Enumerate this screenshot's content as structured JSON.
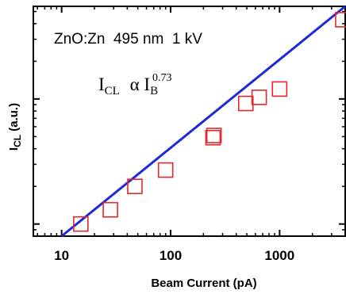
{
  "chart_data": {
    "type": "scatter",
    "title": "",
    "annotation": "ZnO:Zn  495 nm  1 kV",
    "formula": {
      "lhs": "I",
      "lhs_sub": "CL",
      "op": "α",
      "rhs": "I",
      "rhs_sub": "B",
      "rhs_sup": "0.73"
    },
    "xlabel": "Beam Current (pA)",
    "ylabel": "I",
    "ylabel_sub": "CL",
    "ylabel_suffix": " (a.u.)",
    "x_scale": "log",
    "y_scale": "log",
    "xlim": [
      5.5,
      4000
    ],
    "ylim": [
      0.8,
      55
    ],
    "x_ticks": [
      10,
      100,
      1000
    ],
    "x_tick_labels": [
      "10",
      "100",
      "1000"
    ],
    "y_tick_labels_shown": false,
    "grid": false,
    "series": [
      {
        "marker": "open-square",
        "color": "#e8262b",
        "points": [
          {
            "x": 15,
            "y": 1.0
          },
          {
            "x": 28,
            "y": 1.3
          },
          {
            "x": 47,
            "y": 2.0
          },
          {
            "x": 90,
            "y": 2.7
          },
          {
            "x": 245,
            "y": 4.9
          },
          {
            "x": 250,
            "y": 5.1
          },
          {
            "x": 490,
            "y": 9.2
          },
          {
            "x": 650,
            "y": 10.3
          },
          {
            "x": 1000,
            "y": 12.0
          },
          {
            "x": 3800,
            "y": 43.0
          }
        ]
      }
    ],
    "fit_line": {
      "color": "#1e2ad6",
      "exponent": 0.73,
      "x_range": [
        10,
        4000
      ],
      "points": [
        {
          "x": 10,
          "y": 0.69
        },
        {
          "x": 4000,
          "y": 55
        }
      ]
    }
  }
}
